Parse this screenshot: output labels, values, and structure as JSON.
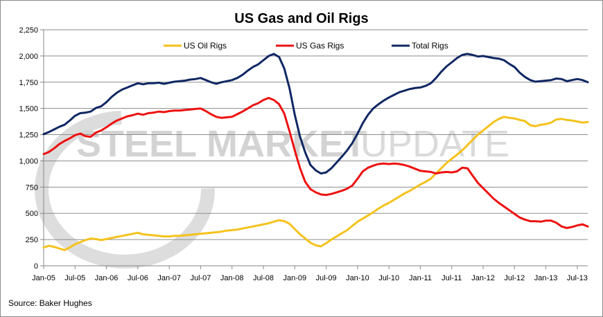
{
  "chart_data": {
    "type": "line",
    "title": "US Gas and Oil Rigs",
    "xlabel": "",
    "ylabel": "",
    "ylim": [
      0,
      2250
    ],
    "yticks": [
      0,
      250,
      500,
      750,
      1000,
      1250,
      1500,
      1750,
      2000,
      2250
    ],
    "ytick_labels": [
      "0",
      "250",
      "500",
      "750",
      "1,000",
      "1,250",
      "1,500",
      "1,750",
      "2,000",
      "2,250"
    ],
    "x_range_months": [
      0,
      104
    ],
    "xticks": [
      0,
      6,
      12,
      18,
      24,
      30,
      36,
      42,
      48,
      54,
      60,
      66,
      72,
      78,
      84,
      90,
      96,
      102
    ],
    "xtick_labels": [
      "Jan-05",
      "Jul-05",
      "Jan-06",
      "Jul-06",
      "Jan-07",
      "Jul-07",
      "Jan-08",
      "Jul-08",
      "Jan-09",
      "Jul-09",
      "Jan-10",
      "Jul-10",
      "Jan-11",
      "Jul-11",
      "Jan-12",
      "Jul-12",
      "Jan-13",
      "Jul-13"
    ],
    "grid": true,
    "legend_position": "top",
    "series": [
      {
        "name": "US Oil Rigs",
        "color": "#f5c21b",
        "points": [
          [
            0,
            175
          ],
          [
            1,
            190
          ],
          [
            2,
            180
          ],
          [
            3,
            165
          ],
          [
            4,
            150
          ],
          [
            5,
            175
          ],
          [
            6,
            205
          ],
          [
            7,
            225
          ],
          [
            8,
            245
          ],
          [
            9,
            260
          ],
          [
            10,
            255
          ],
          [
            11,
            245
          ],
          [
            12,
            255
          ],
          [
            13,
            265
          ],
          [
            14,
            275
          ],
          [
            15,
            285
          ],
          [
            16,
            295
          ],
          [
            17,
            305
          ],
          [
            18,
            315
          ],
          [
            19,
            300
          ],
          [
            20,
            295
          ],
          [
            21,
            290
          ],
          [
            22,
            285
          ],
          [
            23,
            280
          ],
          [
            24,
            280
          ],
          [
            25,
            285
          ],
          [
            26,
            285
          ],
          [
            27,
            290
          ],
          [
            28,
            295
          ],
          [
            29,
            300
          ],
          [
            30,
            305
          ],
          [
            31,
            310
          ],
          [
            32,
            315
          ],
          [
            33,
            320
          ],
          [
            34,
            325
          ],
          [
            35,
            335
          ],
          [
            36,
            340
          ],
          [
            37,
            345
          ],
          [
            38,
            355
          ],
          [
            39,
            365
          ],
          [
            40,
            375
          ],
          [
            41,
            385
          ],
          [
            42,
            395
          ],
          [
            43,
            405
          ],
          [
            44,
            420
          ],
          [
            45,
            435
          ],
          [
            46,
            425
          ],
          [
            47,
            400
          ],
          [
            48,
            350
          ],
          [
            49,
            300
          ],
          [
            50,
            260
          ],
          [
            51,
            220
          ],
          [
            52,
            195
          ],
          [
            53,
            185
          ],
          [
            54,
            215
          ],
          [
            55,
            250
          ],
          [
            56,
            280
          ],
          [
            57,
            310
          ],
          [
            58,
            340
          ],
          [
            59,
            380
          ],
          [
            60,
            420
          ],
          [
            61,
            450
          ],
          [
            62,
            480
          ],
          [
            63,
            510
          ],
          [
            64,
            545
          ],
          [
            65,
            575
          ],
          [
            66,
            600
          ],
          [
            67,
            630
          ],
          [
            68,
            660
          ],
          [
            69,
            690
          ],
          [
            70,
            715
          ],
          [
            71,
            745
          ],
          [
            72,
            775
          ],
          [
            73,
            800
          ],
          [
            74,
            830
          ],
          [
            75,
            880
          ],
          [
            76,
            930
          ],
          [
            77,
            980
          ],
          [
            78,
            1020
          ],
          [
            79,
            1060
          ],
          [
            80,
            1100
          ],
          [
            81,
            1150
          ],
          [
            82,
            1200
          ],
          [
            83,
            1250
          ],
          [
            84,
            1290
          ],
          [
            85,
            1330
          ],
          [
            86,
            1370
          ],
          [
            87,
            1400
          ],
          [
            88,
            1420
          ],
          [
            89,
            1410
          ],
          [
            90,
            1405
          ],
          [
            91,
            1390
          ],
          [
            92,
            1380
          ],
          [
            93,
            1340
          ],
          [
            94,
            1330
          ],
          [
            95,
            1345
          ],
          [
            96,
            1350
          ],
          [
            97,
            1365
          ],
          [
            98,
            1395
          ],
          [
            99,
            1400
          ],
          [
            100,
            1390
          ],
          [
            101,
            1385
          ],
          [
            102,
            1375
          ],
          [
            103,
            1365
          ],
          [
            104,
            1370
          ]
        ]
      },
      {
        "name": "US Gas Rigs",
        "color": "#ee1010",
        "points": [
          [
            0,
            1065
          ],
          [
            1,
            1085
          ],
          [
            2,
            1120
          ],
          [
            3,
            1160
          ],
          [
            4,
            1190
          ],
          [
            5,
            1215
          ],
          [
            6,
            1245
          ],
          [
            7,
            1260
          ],
          [
            8,
            1235
          ],
          [
            9,
            1230
          ],
          [
            10,
            1270
          ],
          [
            11,
            1290
          ],
          [
            12,
            1320
          ],
          [
            13,
            1355
          ],
          [
            14,
            1385
          ],
          [
            15,
            1405
          ],
          [
            16,
            1425
          ],
          [
            17,
            1435
          ],
          [
            18,
            1450
          ],
          [
            19,
            1440
          ],
          [
            20,
            1455
          ],
          [
            21,
            1460
          ],
          [
            22,
            1470
          ],
          [
            23,
            1465
          ],
          [
            24,
            1475
          ],
          [
            25,
            1480
          ],
          [
            26,
            1480
          ],
          [
            27,
            1485
          ],
          [
            28,
            1490
          ],
          [
            29,
            1495
          ],
          [
            30,
            1500
          ],
          [
            31,
            1475
          ],
          [
            32,
            1445
          ],
          [
            33,
            1420
          ],
          [
            34,
            1410
          ],
          [
            35,
            1415
          ],
          [
            36,
            1420
          ],
          [
            37,
            1445
          ],
          [
            38,
            1470
          ],
          [
            39,
            1500
          ],
          [
            40,
            1530
          ],
          [
            41,
            1550
          ],
          [
            42,
            1580
          ],
          [
            43,
            1600
          ],
          [
            44,
            1580
          ],
          [
            45,
            1540
          ],
          [
            46,
            1450
          ],
          [
            47,
            1280
          ],
          [
            48,
            1100
          ],
          [
            49,
            930
          ],
          [
            50,
            800
          ],
          [
            51,
            730
          ],
          [
            52,
            700
          ],
          [
            53,
            680
          ],
          [
            54,
            675
          ],
          [
            55,
            685
          ],
          [
            56,
            700
          ],
          [
            57,
            715
          ],
          [
            58,
            735
          ],
          [
            59,
            765
          ],
          [
            60,
            830
          ],
          [
            61,
            900
          ],
          [
            62,
            935
          ],
          [
            63,
            955
          ],
          [
            64,
            970
          ],
          [
            65,
            975
          ],
          [
            66,
            970
          ],
          [
            67,
            975
          ],
          [
            68,
            970
          ],
          [
            69,
            960
          ],
          [
            70,
            945
          ],
          [
            71,
            925
          ],
          [
            72,
            905
          ],
          [
            73,
            900
          ],
          [
            74,
            895
          ],
          [
            75,
            880
          ],
          [
            76,
            890
          ],
          [
            77,
            895
          ],
          [
            78,
            890
          ],
          [
            79,
            900
          ],
          [
            80,
            935
          ],
          [
            81,
            930
          ],
          [
            82,
            860
          ],
          [
            83,
            790
          ],
          [
            84,
            740
          ],
          [
            85,
            690
          ],
          [
            86,
            640
          ],
          [
            87,
            600
          ],
          [
            88,
            565
          ],
          [
            89,
            530
          ],
          [
            90,
            495
          ],
          [
            91,
            460
          ],
          [
            92,
            440
          ],
          [
            93,
            425
          ],
          [
            94,
            425
          ],
          [
            95,
            420
          ],
          [
            96,
            430
          ],
          [
            97,
            430
          ],
          [
            98,
            410
          ],
          [
            99,
            375
          ],
          [
            100,
            360
          ],
          [
            101,
            370
          ],
          [
            102,
            385
          ],
          [
            103,
            395
          ],
          [
            104,
            375
          ]
        ]
      },
      {
        "name": "Total Rigs",
        "color": "#0f2763",
        "points": [
          [
            0,
            1255
          ],
          [
            1,
            1275
          ],
          [
            2,
            1300
          ],
          [
            3,
            1325
          ],
          [
            4,
            1345
          ],
          [
            5,
            1385
          ],
          [
            6,
            1430
          ],
          [
            7,
            1455
          ],
          [
            8,
            1460
          ],
          [
            9,
            1470
          ],
          [
            10,
            1505
          ],
          [
            11,
            1520
          ],
          [
            12,
            1560
          ],
          [
            13,
            1610
          ],
          [
            14,
            1650
          ],
          [
            15,
            1680
          ],
          [
            16,
            1700
          ],
          [
            17,
            1720
          ],
          [
            18,
            1740
          ],
          [
            19,
            1730
          ],
          [
            20,
            1740
          ],
          [
            21,
            1740
          ],
          [
            22,
            1745
          ],
          [
            23,
            1735
          ],
          [
            24,
            1745
          ],
          [
            25,
            1755
          ],
          [
            26,
            1760
          ],
          [
            27,
            1765
          ],
          [
            28,
            1775
          ],
          [
            29,
            1780
          ],
          [
            30,
            1790
          ],
          [
            31,
            1770
          ],
          [
            32,
            1750
          ],
          [
            33,
            1735
          ],
          [
            34,
            1750
          ],
          [
            35,
            1760
          ],
          [
            36,
            1770
          ],
          [
            37,
            1790
          ],
          [
            38,
            1820
          ],
          [
            39,
            1860
          ],
          [
            40,
            1895
          ],
          [
            41,
            1920
          ],
          [
            42,
            1960
          ],
          [
            43,
            2000
          ],
          [
            44,
            2020
          ],
          [
            45,
            1990
          ],
          [
            46,
            1880
          ],
          [
            47,
            1690
          ],
          [
            48,
            1440
          ],
          [
            49,
            1230
          ],
          [
            50,
            1080
          ],
          [
            51,
            960
          ],
          [
            52,
            910
          ],
          [
            53,
            880
          ],
          [
            54,
            890
          ],
          [
            55,
            930
          ],
          [
            56,
            985
          ],
          [
            57,
            1040
          ],
          [
            58,
            1100
          ],
          [
            59,
            1170
          ],
          [
            60,
            1260
          ],
          [
            61,
            1360
          ],
          [
            62,
            1440
          ],
          [
            63,
            1500
          ],
          [
            64,
            1540
          ],
          [
            65,
            1575
          ],
          [
            66,
            1605
          ],
          [
            67,
            1630
          ],
          [
            68,
            1655
          ],
          [
            69,
            1670
          ],
          [
            70,
            1685
          ],
          [
            71,
            1695
          ],
          [
            72,
            1700
          ],
          [
            73,
            1715
          ],
          [
            74,
            1740
          ],
          [
            75,
            1790
          ],
          [
            76,
            1850
          ],
          [
            77,
            1900
          ],
          [
            78,
            1940
          ],
          [
            79,
            1980
          ],
          [
            80,
            2010
          ],
          [
            81,
            2020
          ],
          [
            82,
            2010
          ],
          [
            83,
            1995
          ],
          [
            84,
            2000
          ],
          [
            85,
            1990
          ],
          [
            86,
            1980
          ],
          [
            87,
            1975
          ],
          [
            88,
            1960
          ],
          [
            89,
            1925
          ],
          [
            90,
            1895
          ],
          [
            91,
            1840
          ],
          [
            92,
            1800
          ],
          [
            93,
            1770
          ],
          [
            94,
            1755
          ],
          [
            95,
            1760
          ],
          [
            96,
            1765
          ],
          [
            97,
            1770
          ],
          [
            98,
            1785
          ],
          [
            99,
            1780
          ],
          [
            100,
            1760
          ],
          [
            101,
            1770
          ],
          [
            102,
            1780
          ],
          [
            103,
            1770
          ],
          [
            104,
            1750
          ]
        ]
      }
    ],
    "watermark": {
      "bold_text": "STEEL MARKET",
      "light_text": "UPDATE"
    },
    "source_note": "Source: Baker Hughes"
  }
}
